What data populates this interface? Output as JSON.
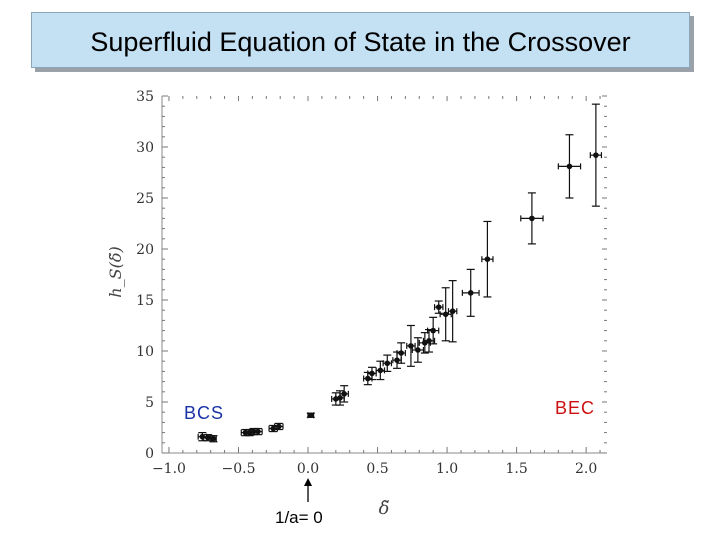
{
  "header": {
    "title": "Superfluid Equation of State in the Crossover"
  },
  "colors": {
    "title_bg": "#c4e0f3",
    "bcs": "#1a33a6",
    "bec": "#cc1111",
    "points": "#111111"
  },
  "annotations": {
    "bcs": "BCS",
    "bec": "BEC",
    "marker": "1/a= 0",
    "marker_x": 0.0
  },
  "chart_data": {
    "type": "scatter",
    "title": "",
    "xlabel": "δ̃",
    "ylabel": "h_S(δ̃)",
    "xlim": [
      -1.05,
      2.15
    ],
    "ylim": [
      0,
      35
    ],
    "xticks": [
      -1.0,
      -0.5,
      0.0,
      0.5,
      1.0,
      1.5,
      2.0
    ],
    "xtick_labels": [
      "−1.0",
      "−0.5",
      "0.0",
      "0.5",
      "1.0",
      "1.5",
      "2.0"
    ],
    "yticks": [
      0,
      5,
      10,
      15,
      20,
      25,
      30,
      35
    ],
    "ytick_labels": [
      "0",
      "5",
      "10",
      "15",
      "20",
      "25",
      "30",
      "35"
    ],
    "grid": false,
    "series": [
      {
        "points": [
          {
            "x": -0.76,
            "y": 1.6,
            "yerr": 0.4,
            "xerr": 0.03
          },
          {
            "x": -0.72,
            "y": 1.5,
            "yerr": 0.3,
            "xerr": 0.03
          },
          {
            "x": -0.68,
            "y": 1.4,
            "yerr": 0.3,
            "xerr": 0.02
          },
          {
            "x": -0.45,
            "y": 2.0,
            "yerr": 0.3,
            "xerr": 0.03
          },
          {
            "x": -0.42,
            "y": 2.0,
            "yerr": 0.3,
            "xerr": 0.03
          },
          {
            "x": -0.39,
            "y": 2.1,
            "yerr": 0.3,
            "xerr": 0.03
          },
          {
            "x": -0.36,
            "y": 2.1,
            "yerr": 0.3,
            "xerr": 0.03
          },
          {
            "x": -0.25,
            "y": 2.4,
            "yerr": 0.3,
            "xerr": 0.03
          },
          {
            "x": -0.21,
            "y": 2.6,
            "yerr": 0.3,
            "xerr": 0.03
          },
          {
            "x": 0.02,
            "y": 3.7,
            "yerr": 0.2,
            "xerr": 0.02
          },
          {
            "x": 0.2,
            "y": 5.3,
            "yerr": 0.6,
            "xerr": 0.03
          },
          {
            "x": 0.23,
            "y": 5.4,
            "yerr": 0.7,
            "xerr": 0.03
          },
          {
            "x": 0.26,
            "y": 5.8,
            "yerr": 0.8,
            "xerr": 0.03
          },
          {
            "x": 0.43,
            "y": 7.3,
            "yerr": 0.6,
            "xerr": 0.03
          },
          {
            "x": 0.46,
            "y": 7.8,
            "yerr": 0.6,
            "xerr": 0.03
          },
          {
            "x": 0.52,
            "y": 8.1,
            "yerr": 0.9,
            "xerr": 0.03
          },
          {
            "x": 0.57,
            "y": 8.8,
            "yerr": 0.8,
            "xerr": 0.03
          },
          {
            "x": 0.64,
            "y": 9.1,
            "yerr": 0.8,
            "xerr": 0.03
          },
          {
            "x": 0.67,
            "y": 9.8,
            "yerr": 1.0,
            "xerr": 0.03
          },
          {
            "x": 0.74,
            "y": 10.5,
            "yerr": 2.0,
            "xerr": 0.03
          },
          {
            "x": 0.79,
            "y": 10.1,
            "yerr": 1.2,
            "xerr": 0.04
          },
          {
            "x": 0.84,
            "y": 10.8,
            "yerr": 1.0,
            "xerr": 0.04
          },
          {
            "x": 0.87,
            "y": 11.0,
            "yerr": 1.1,
            "xerr": 0.04
          },
          {
            "x": 0.9,
            "y": 12.0,
            "yerr": 1.3,
            "xerr": 0.04
          },
          {
            "x": 0.94,
            "y": 14.3,
            "yerr": 0.6,
            "xerr": 0.03
          },
          {
            "x": 0.99,
            "y": 13.6,
            "yerr": 2.6,
            "xerr": 0.04
          },
          {
            "x": 1.04,
            "y": 13.9,
            "yerr": 3.0,
            "xerr": 0.03
          },
          {
            "x": 1.17,
            "y": 15.7,
            "yerr": 2.3,
            "xerr": 0.06
          },
          {
            "x": 1.29,
            "y": 19.0,
            "yerr": 3.7,
            "xerr": 0.04
          },
          {
            "x": 1.61,
            "y": 23.0,
            "yerr": 2.5,
            "xerr": 0.08
          },
          {
            "x": 1.88,
            "y": 28.1,
            "yerr": 3.1,
            "xerr": 0.08
          },
          {
            "x": 2.07,
            "y": 29.2,
            "yerr": 5.0,
            "xerr": 0.04
          }
        ]
      }
    ]
  }
}
